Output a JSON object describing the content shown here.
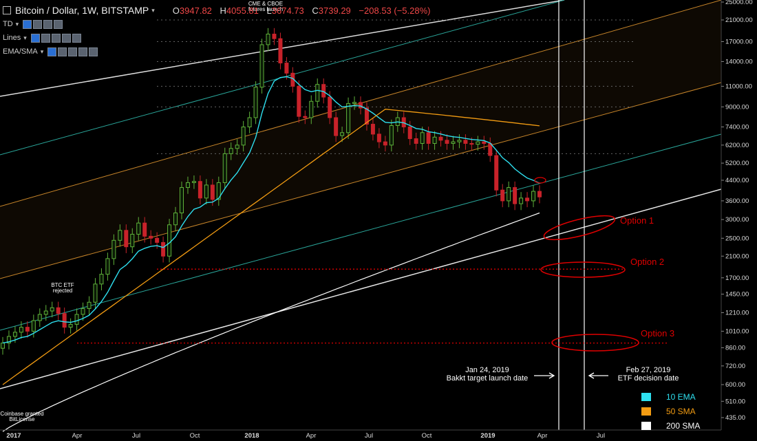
{
  "header": {
    "symbol": "Bitcoin / Dollar, 1W, BITSTAMP",
    "o_label": "O",
    "o_value": "3947.82",
    "h_label": "H",
    "h_value": "4055.81",
    "l_label": "L",
    "l_value": "3674.73",
    "c_label": "C",
    "c_value": "3739.29",
    "change": "−208.53 (−5.28%)"
  },
  "indicators": [
    {
      "label": "TD"
    },
    {
      "label": "Lines"
    },
    {
      "label": "EMA/SMA"
    }
  ],
  "colors": {
    "up": "#5fb23a",
    "down": "#c8222a",
    "ema10": "#2ee0f0",
    "sma50": "#f39c12",
    "sma200": "#ffffff",
    "channel_green": "#2aa79b",
    "channel_orange": "#c8862a",
    "option_red": "#e00000"
  },
  "legend": [
    {
      "label": "10 EMA",
      "color": "#2ee0f0"
    },
    {
      "label": "50 SMA",
      "color": "#f39c12"
    },
    {
      "label": "200 SMA",
      "color": "#ffffff"
    }
  ],
  "annotations": {
    "cme": "CME & CBOE\nfutures launch",
    "etf_rejected": "BTC ETF\nrejected",
    "coinbase": "Coinbase granted\nBitLicense",
    "bakkt": "Jan 24, 2019\nBakkt target launch date",
    "etf_decision": "Feb 27, 2019\nETF decision date",
    "option1": "Option 1",
    "option2": "Option 2",
    "option3": "Option 3"
  },
  "chart_data": {
    "type": "candlestick",
    "title": "Bitcoin / Dollar, 1W, BITSTAMP",
    "y_scale": "log",
    "y_ticks": [
      435,
      510,
      600,
      720,
      860,
      1010,
      1210,
      1450,
      1700,
      2100,
      2500,
      3000,
      3600,
      4400,
      5200,
      6200,
      7400,
      9000,
      11000,
      14000,
      17000,
      21000,
      25000
    ],
    "x_ticks": [
      "2017",
      "Apr",
      "Jul",
      "Oct",
      "2018",
      "Apr",
      "Jul",
      "Oct",
      "2019",
      "Apr",
      "Jul"
    ],
    "candles_close": [
      900,
      960,
      1000,
      1050,
      1010,
      1120,
      1190,
      1230,
      1270,
      1200,
      1050,
      1080,
      1190,
      1260,
      1340,
      1600,
      1760,
      2050,
      2450,
      2700,
      2300,
      2600,
      2900,
      2550,
      2500,
      2400,
      2100,
      2850,
      3200,
      4100,
      4300,
      4350,
      3700,
      4200,
      3650,
      4300,
      5700,
      6000,
      6200,
      7400,
      8100,
      10900,
      16500,
      18300,
      17500,
      13800,
      12500,
      11000,
      8200,
      8100,
      9500,
      11200,
      9900,
      8100,
      6800,
      7000,
      9300,
      9400,
      8900,
      7600,
      6900,
      6400,
      6200,
      7500,
      8100,
      7400,
      6600,
      6300,
      7000,
      6300,
      6700,
      6500,
      6300,
      6400,
      6500,
      6300,
      6250,
      6400,
      6300,
      5600,
      4000,
      3600,
      4100,
      3500,
      3700,
      3600,
      3950,
      3740
    ],
    "ema10_end": 4400,
    "sma50_end": 7400,
    "sma200_end": 3200,
    "series": [
      {
        "name": "10 EMA"
      },
      {
        "name": "50 SMA"
      },
      {
        "name": "200 SMA"
      }
    ],
    "horizontal_levels": [
      1850,
      900
    ]
  }
}
